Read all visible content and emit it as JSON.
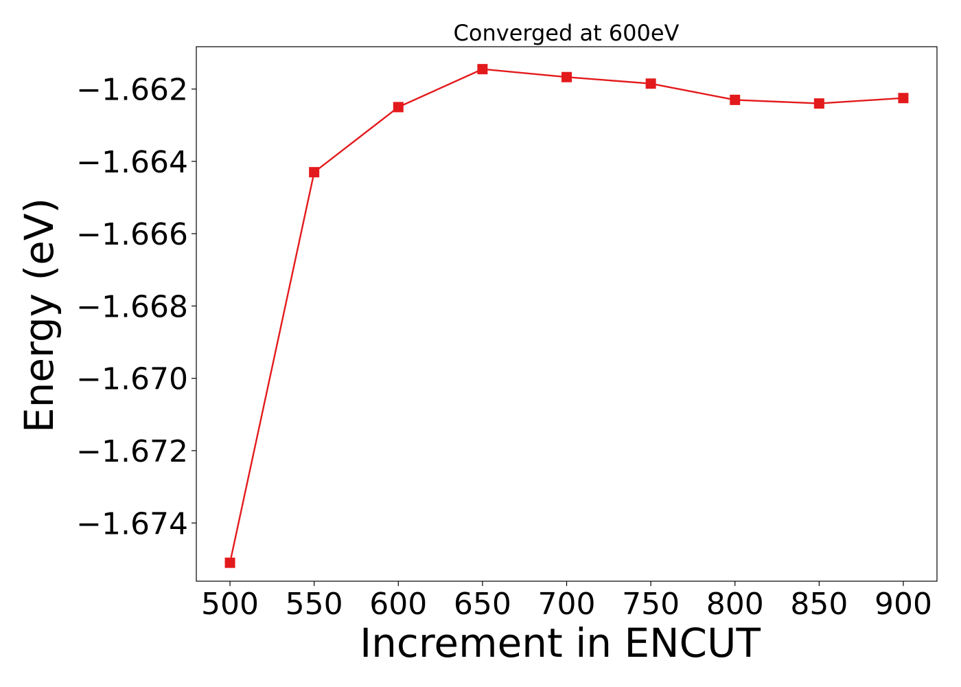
{
  "chart_data": {
    "type": "line",
    "title": "Converged at 600eV",
    "xlabel": "Increment in ENCUT",
    "ylabel": "Energy (eV)",
    "x": [
      500,
      550,
      600,
      650,
      700,
      750,
      800,
      850,
      900
    ],
    "series": [
      {
        "values": [
          -1.6751,
          -1.6643,
          -1.6625,
          -1.66145,
          -1.66167,
          -1.66185,
          -1.6623,
          -1.6624,
          -1.66225
        ],
        "color": "#e31a1c",
        "marker": "square"
      }
    ],
    "xticks": [
      500,
      550,
      600,
      650,
      700,
      750,
      800,
      850,
      900
    ],
    "xtick_labels": [
      "500",
      "550",
      "600",
      "650",
      "700",
      "750",
      "800",
      "850",
      "900"
    ],
    "yticks": [
      -1.662,
      -1.664,
      -1.666,
      -1.668,
      -1.67,
      -1.672,
      -1.674
    ],
    "ytick_labels": [
      "−1.662",
      "−1.664",
      "−1.666",
      "−1.668",
      "−1.670",
      "−1.672",
      "−1.674"
    ],
    "xlim": [
      480,
      920
    ],
    "ylim": [
      -1.67561,
      -1.66083
    ],
    "grid": false,
    "legend": "none"
  }
}
